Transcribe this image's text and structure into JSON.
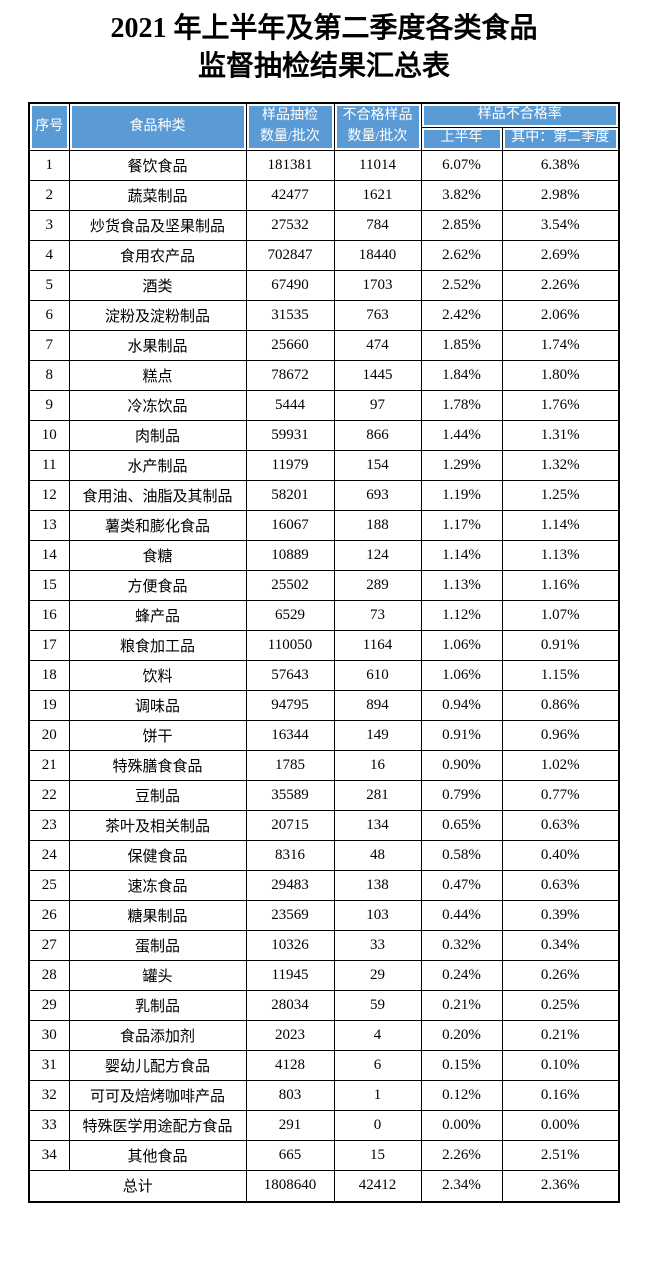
{
  "title": {
    "line1": "2021 年上半年及第二季度各类食品",
    "line2": "监督抽检结果汇总表"
  },
  "colors": {
    "header_bg": "#5B9BD5",
    "header_text": "#FFFFFF",
    "border": "#000000",
    "page_bg": "#FFFFFF"
  },
  "table": {
    "header": {
      "col_index": "序号",
      "col_category": "食品种类",
      "col_samples_line1": "样品抽检",
      "col_samples_line2": "数量/批次",
      "col_failed_line1": "不合格样品",
      "col_failed_line2": "数量/批次",
      "col_rate_group": "样品不合格率",
      "col_rate_h1": "上半年",
      "col_rate_q2": "其中：第二季度"
    },
    "rows": [
      {
        "no": "1",
        "category": "餐饮食品",
        "samples": "181381",
        "failed": "11014",
        "rate_h1": "6.07%",
        "rate_q2": "6.38%"
      },
      {
        "no": "2",
        "category": "蔬菜制品",
        "samples": "42477",
        "failed": "1621",
        "rate_h1": "3.82%",
        "rate_q2": "2.98%"
      },
      {
        "no": "3",
        "category": "炒货食品及坚果制品",
        "samples": "27532",
        "failed": "784",
        "rate_h1": "2.85%",
        "rate_q2": "3.54%"
      },
      {
        "no": "4",
        "category": "食用农产品",
        "samples": "702847",
        "failed": "18440",
        "rate_h1": "2.62%",
        "rate_q2": "2.69%"
      },
      {
        "no": "5",
        "category": "酒类",
        "samples": "67490",
        "failed": "1703",
        "rate_h1": "2.52%",
        "rate_q2": "2.26%"
      },
      {
        "no": "6",
        "category": "淀粉及淀粉制品",
        "samples": "31535",
        "failed": "763",
        "rate_h1": "2.42%",
        "rate_q2": "2.06%"
      },
      {
        "no": "7",
        "category": "水果制品",
        "samples": "25660",
        "failed": "474",
        "rate_h1": "1.85%",
        "rate_q2": "1.74%"
      },
      {
        "no": "8",
        "category": "糕点",
        "samples": "78672",
        "failed": "1445",
        "rate_h1": "1.84%",
        "rate_q2": "1.80%"
      },
      {
        "no": "9",
        "category": "冷冻饮品",
        "samples": "5444",
        "failed": "97",
        "rate_h1": "1.78%",
        "rate_q2": "1.76%"
      },
      {
        "no": "10",
        "category": "肉制品",
        "samples": "59931",
        "failed": "866",
        "rate_h1": "1.44%",
        "rate_q2": "1.31%"
      },
      {
        "no": "11",
        "category": "水产制品",
        "samples": "11979",
        "failed": "154",
        "rate_h1": "1.29%",
        "rate_q2": "1.32%"
      },
      {
        "no": "12",
        "category": "食用油、油脂及其制品",
        "samples": "58201",
        "failed": "693",
        "rate_h1": "1.19%",
        "rate_q2": "1.25%"
      },
      {
        "no": "13",
        "category": "薯类和膨化食品",
        "samples": "16067",
        "failed": "188",
        "rate_h1": "1.17%",
        "rate_q2": "1.14%"
      },
      {
        "no": "14",
        "category": "食糖",
        "samples": "10889",
        "failed": "124",
        "rate_h1": "1.14%",
        "rate_q2": "1.13%"
      },
      {
        "no": "15",
        "category": "方便食品",
        "samples": "25502",
        "failed": "289",
        "rate_h1": "1.13%",
        "rate_q2": "1.16%"
      },
      {
        "no": "16",
        "category": "蜂产品",
        "samples": "6529",
        "failed": "73",
        "rate_h1": "1.12%",
        "rate_q2": "1.07%"
      },
      {
        "no": "17",
        "category": "粮食加工品",
        "samples": "110050",
        "failed": "1164",
        "rate_h1": "1.06%",
        "rate_q2": "0.91%"
      },
      {
        "no": "18",
        "category": "饮料",
        "samples": "57643",
        "failed": "610",
        "rate_h1": "1.06%",
        "rate_q2": "1.15%"
      },
      {
        "no": "19",
        "category": "调味品",
        "samples": "94795",
        "failed": "894",
        "rate_h1": "0.94%",
        "rate_q2": "0.86%"
      },
      {
        "no": "20",
        "category": "饼干",
        "samples": "16344",
        "failed": "149",
        "rate_h1": "0.91%",
        "rate_q2": "0.96%"
      },
      {
        "no": "21",
        "category": "特殊膳食食品",
        "samples": "1785",
        "failed": "16",
        "rate_h1": "0.90%",
        "rate_q2": "1.02%"
      },
      {
        "no": "22",
        "category": "豆制品",
        "samples": "35589",
        "failed": "281",
        "rate_h1": "0.79%",
        "rate_q2": "0.77%"
      },
      {
        "no": "23",
        "category": "茶叶及相关制品",
        "samples": "20715",
        "failed": "134",
        "rate_h1": "0.65%",
        "rate_q2": "0.63%"
      },
      {
        "no": "24",
        "category": "保健食品",
        "samples": "8316",
        "failed": "48",
        "rate_h1": "0.58%",
        "rate_q2": "0.40%"
      },
      {
        "no": "25",
        "category": "速冻食品",
        "samples": "29483",
        "failed": "138",
        "rate_h1": "0.47%",
        "rate_q2": "0.63%"
      },
      {
        "no": "26",
        "category": "糖果制品",
        "samples": "23569",
        "failed": "103",
        "rate_h1": "0.44%",
        "rate_q2": "0.39%"
      },
      {
        "no": "27",
        "category": "蛋制品",
        "samples": "10326",
        "failed": "33",
        "rate_h1": "0.32%",
        "rate_q2": "0.34%"
      },
      {
        "no": "28",
        "category": "罐头",
        "samples": "11945",
        "failed": "29",
        "rate_h1": "0.24%",
        "rate_q2": "0.26%"
      },
      {
        "no": "29",
        "category": "乳制品",
        "samples": "28034",
        "failed": "59",
        "rate_h1": "0.21%",
        "rate_q2": "0.25%"
      },
      {
        "no": "30",
        "category": "食品添加剂",
        "samples": "2023",
        "failed": "4",
        "rate_h1": "0.20%",
        "rate_q2": "0.21%"
      },
      {
        "no": "31",
        "category": "婴幼儿配方食品",
        "samples": "4128",
        "failed": "6",
        "rate_h1": "0.15%",
        "rate_q2": "0.10%"
      },
      {
        "no": "32",
        "category": "可可及焙烤咖啡产品",
        "samples": "803",
        "failed": "1",
        "rate_h1": "0.12%",
        "rate_q2": "0.16%"
      },
      {
        "no": "33",
        "category": "特殊医学用途配方食品",
        "samples": "291",
        "failed": "0",
        "rate_h1": "0.00%",
        "rate_q2": "0.00%"
      },
      {
        "no": "34",
        "category": "其他食品",
        "samples": "665",
        "failed": "15",
        "rate_h1": "2.26%",
        "rate_q2": "2.51%"
      }
    ],
    "total": {
      "label": "总计",
      "samples": "1808640",
      "failed": "42412",
      "rate_h1": "2.34%",
      "rate_q2": "2.36%"
    }
  }
}
